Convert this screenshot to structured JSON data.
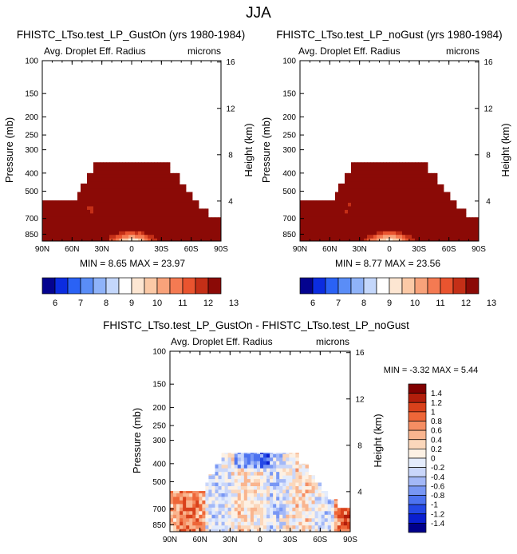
{
  "page_title": "JJA",
  "colors": {
    "panel_bg": "#ffffff",
    "missing_region": "#ffffff",
    "frame": "#000000",
    "abs_palette": [
      "#04038f",
      "#0b2ce0",
      "#2a62f5",
      "#5a8df7",
      "#8fb3f9",
      "#c4d7fb",
      "#ffffff",
      "#fde6d2",
      "#fbc9a6",
      "#f8a27a",
      "#f47a52",
      "#e9542f",
      "#c42f17",
      "#8b0a06"
    ],
    "diff_palette": [
      "#00008b",
      "#0a1fd0",
      "#2448e6",
      "#4d73f0",
      "#7897f4",
      "#a3b8f7",
      "#c9d6fa",
      "#e4ecfc",
      "#fdf1e4",
      "#fbd7bb",
      "#f9b58f",
      "#f58e63",
      "#ee6638",
      "#d9411b",
      "#b21e0b",
      "#800000"
    ]
  },
  "chart_data": [
    {
      "type": "heatmap",
      "title": "FHISTC_LTso.test_LP_GustOn (yrs 1980-1984)",
      "subtitle_left": "Avg. Droplet Eff. Radius",
      "subtitle_right": "microns",
      "ylabel": "Pressure (mb)",
      "ylabel_right": "Height (km)",
      "x_ticks": [
        "90N",
        "60N",
        "30N",
        "0",
        "30S",
        "60S",
        "90S"
      ],
      "x_tick_values": [
        90,
        60,
        30,
        0,
        -30,
        -60,
        -90
      ],
      "y_ticks": [
        "100",
        "150",
        "200",
        "250",
        "300",
        "400",
        "500",
        "700",
        "850"
      ],
      "y_tick_values": [
        100,
        150,
        200,
        250,
        300,
        400,
        500,
        700,
        850
      ],
      "y_range": [
        100,
        925
      ],
      "y_scale": "log",
      "height_ticks": [
        "16",
        "12",
        "8",
        "4"
      ],
      "height_tick_values": [
        16,
        12,
        8,
        4
      ],
      "stats": "MIN =  8.65  MAX = 23.97",
      "min": 8.65,
      "max": 23.97,
      "colorbar_labels": [
        "6",
        "7",
        "8",
        "9",
        "10",
        "11",
        "12",
        "13"
      ],
      "colorbar_levels": [
        5.5,
        6,
        6.5,
        7,
        7.5,
        8,
        8.5,
        9,
        9.5,
        10,
        10.5,
        11,
        11.5,
        12,
        12.5,
        13
      ]
    },
    {
      "type": "heatmap",
      "title": "FHISTC_LTso.test_LP_noGust (yrs 1980-1984)",
      "subtitle_left": "Avg. Droplet Eff. Radius",
      "subtitle_right": "microns",
      "ylabel": "Pressure (mb)",
      "ylabel_right": "Height (km)",
      "x_ticks": [
        "90N",
        "60N",
        "30N",
        "0",
        "30S",
        "60S",
        "90S"
      ],
      "x_tick_values": [
        90,
        60,
        30,
        0,
        -30,
        -60,
        -90
      ],
      "y_ticks": [
        "100",
        "150",
        "200",
        "250",
        "300",
        "400",
        "500",
        "700",
        "850"
      ],
      "y_tick_values": [
        100,
        150,
        200,
        250,
        300,
        400,
        500,
        700,
        850
      ],
      "y_range": [
        100,
        925
      ],
      "y_scale": "log",
      "height_ticks": [
        "16",
        "12",
        "8",
        "4"
      ],
      "height_tick_values": [
        16,
        12,
        8,
        4
      ],
      "stats": "MIN =  8.77  MAX = 23.56",
      "min": 8.77,
      "max": 23.56,
      "colorbar_labels": [
        "6",
        "7",
        "8",
        "9",
        "10",
        "11",
        "12",
        "13"
      ],
      "colorbar_levels": [
        5.5,
        6,
        6.5,
        7,
        7.5,
        8,
        8.5,
        9,
        9.5,
        10,
        10.5,
        11,
        11.5,
        12,
        12.5,
        13
      ]
    },
    {
      "type": "heatmap",
      "title": "FHISTC_LTso.test_LP_GustOn - FHISTC_LTso.test_LP_noGust",
      "subtitle_left": "Avg. Droplet Eff. Radius",
      "subtitle_right": "microns",
      "ylabel": "Pressure (mb)",
      "ylabel_right": "Height (km)",
      "x_ticks": [
        "90N",
        "60N",
        "30N",
        "0",
        "30S",
        "60S",
        "90S"
      ],
      "x_tick_values": [
        90,
        60,
        30,
        0,
        -30,
        -60,
        -90
      ],
      "y_ticks": [
        "100",
        "150",
        "200",
        "250",
        "300",
        "400",
        "500",
        "700",
        "850"
      ],
      "y_tick_values": [
        100,
        150,
        200,
        250,
        300,
        400,
        500,
        700,
        850
      ],
      "y_range": [
        100,
        925
      ],
      "y_scale": "log",
      "height_ticks": [
        "16",
        "12",
        "8",
        "4"
      ],
      "height_tick_values": [
        16,
        12,
        8,
        4
      ],
      "stats": "MIN =  -3.32  MAX =   5.44",
      "min": -3.32,
      "max": 5.44,
      "colorbar_labels": [
        "1.4",
        "1.2",
        "1",
        "0.8",
        "0.6",
        "0.4",
        "0.2",
        "0",
        "-0.2",
        "-0.4",
        "-0.6",
        "-0.8",
        "-1",
        "-1.2",
        "-1.4"
      ],
      "colorbar_levels": [
        1.4,
        1.2,
        1,
        0.8,
        0.6,
        0.4,
        0.2,
        0,
        -0.2,
        -0.4,
        -0.6,
        -0.8,
        -1,
        -1.2,
        -1.4
      ]
    }
  ]
}
